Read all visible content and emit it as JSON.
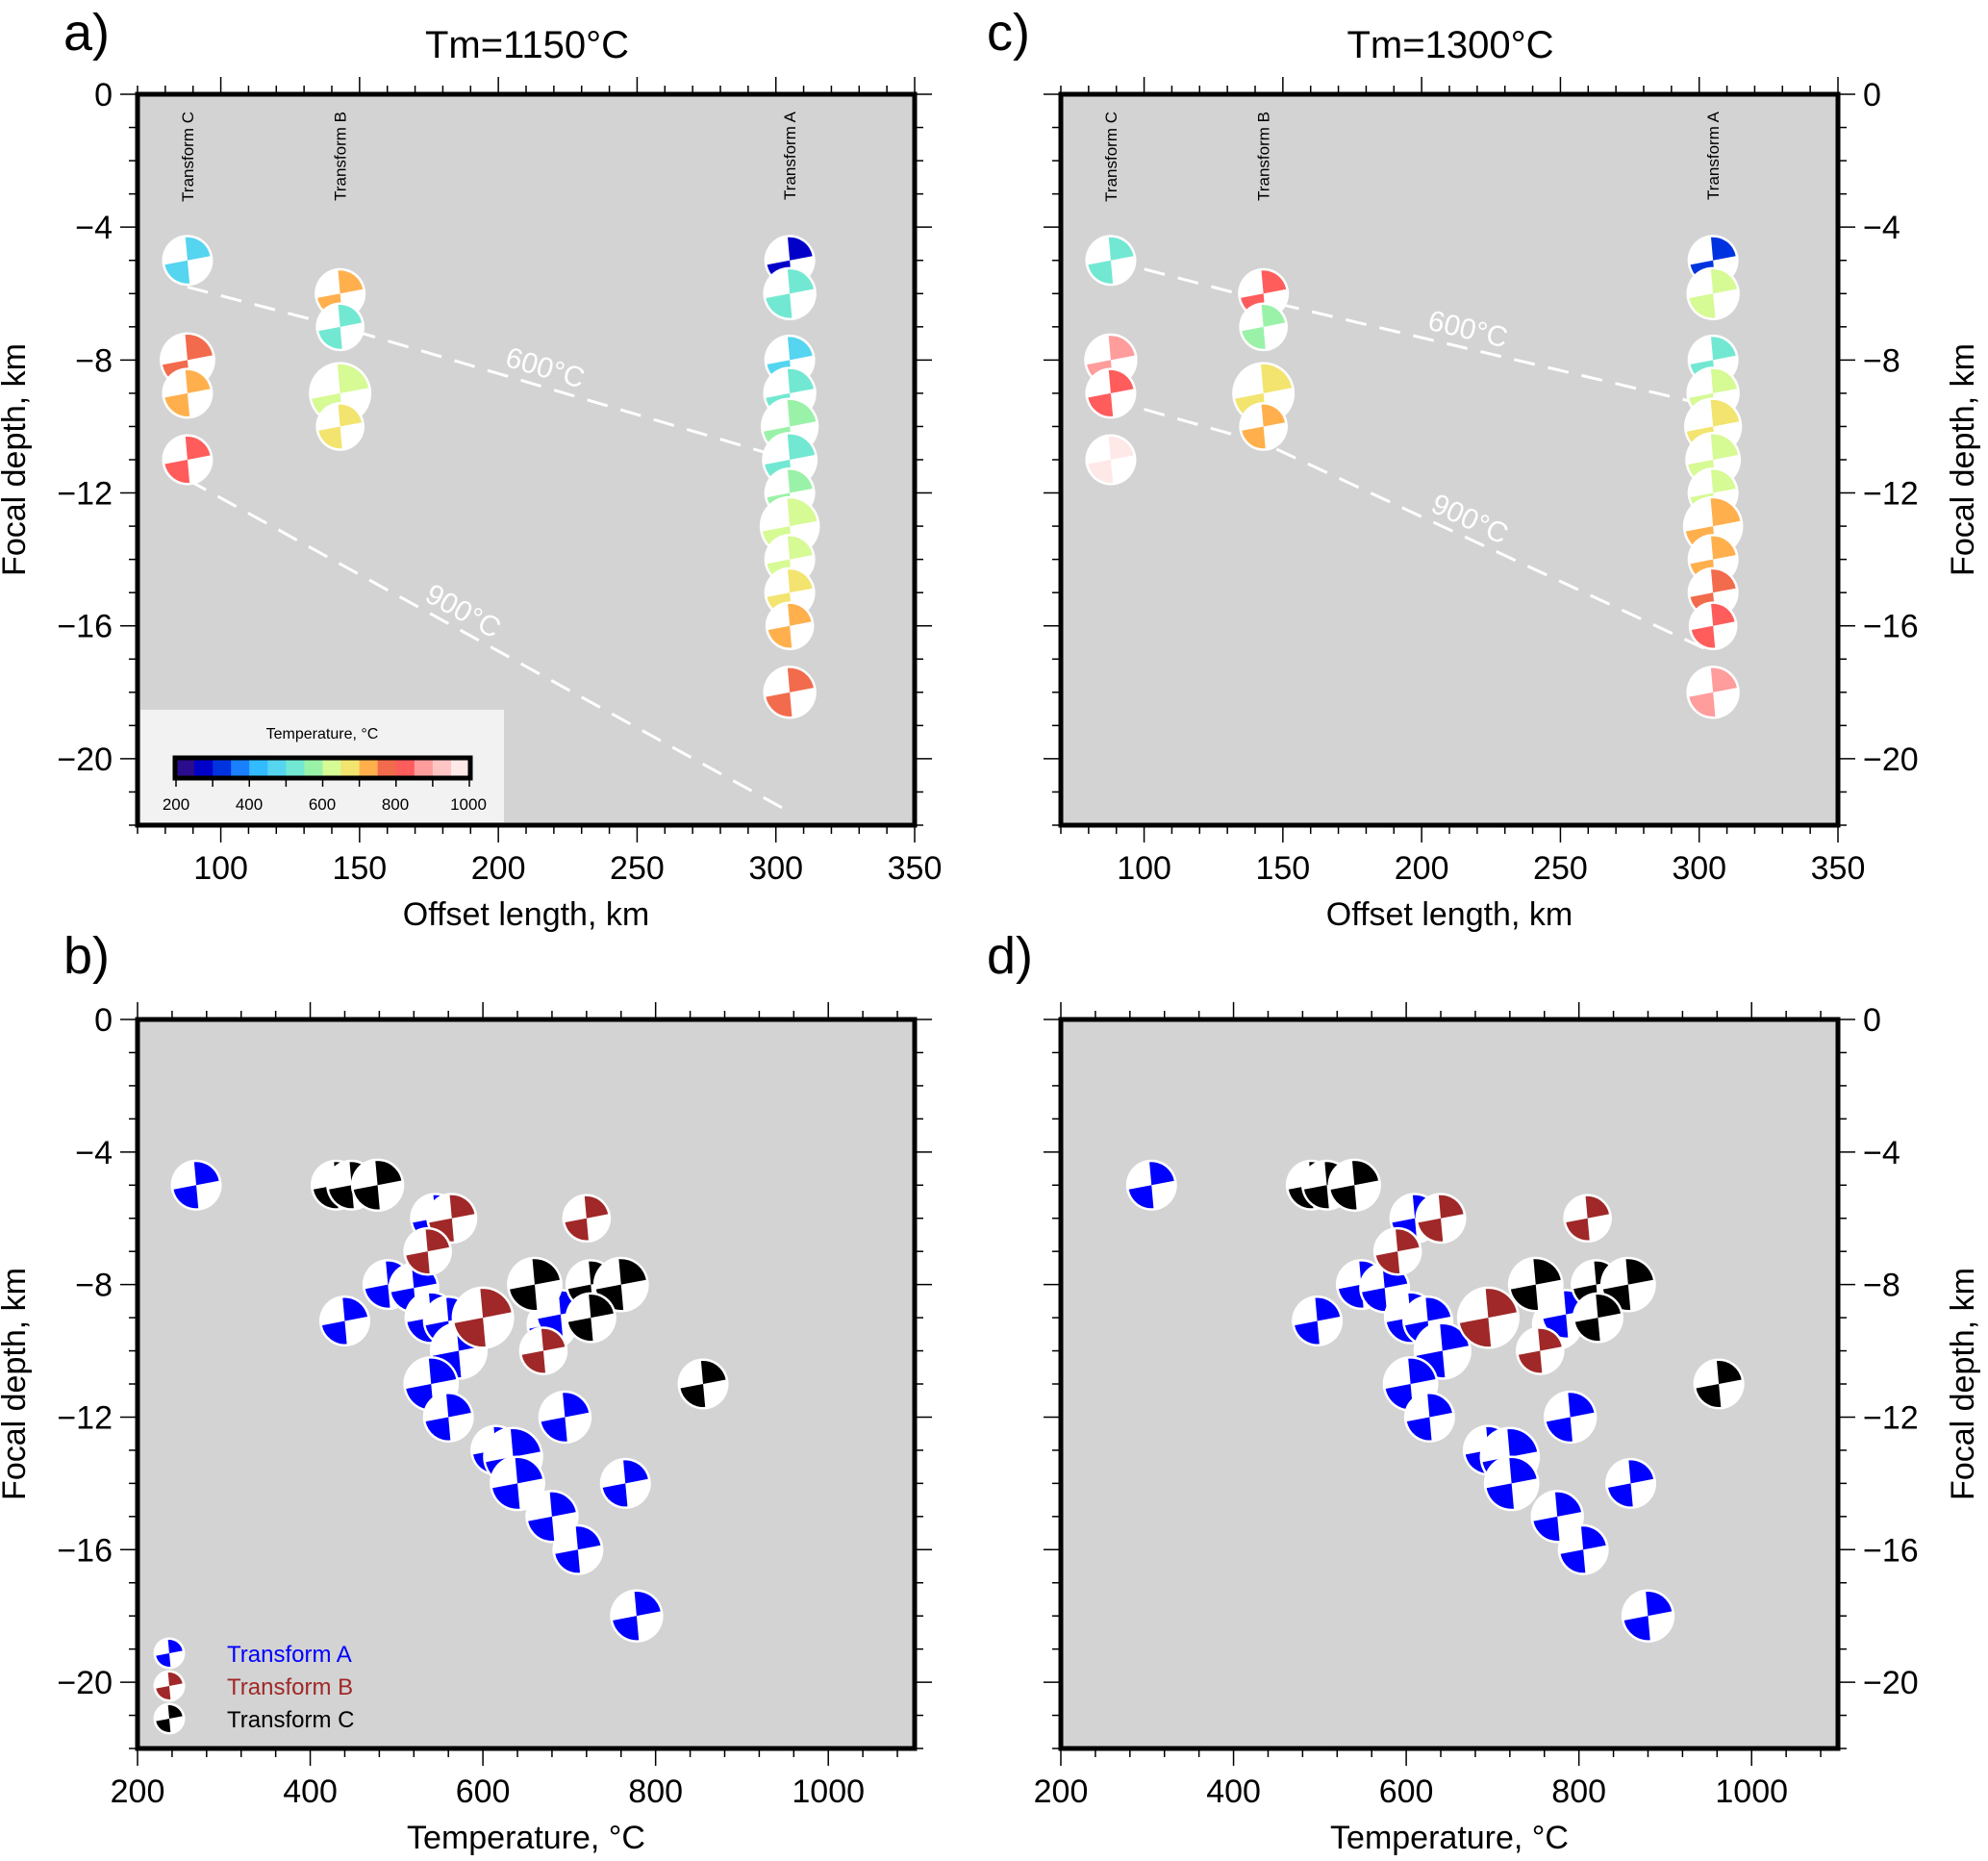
{
  "figure": {
    "panel_labels": [
      "a)",
      "b)",
      "c)",
      "d)"
    ],
    "column_titles": [
      "Tm=1150°C",
      "Tm=1300°C"
    ]
  },
  "colorbar": {
    "title": "Temperature, °C",
    "tick_labels": [
      "200",
      "400",
      "600",
      "800",
      "1000"
    ],
    "range": [
      200,
      1000
    ],
    "step": 50,
    "colors": [
      "#2b0c8f",
      "#0000c8",
      "#0033e0",
      "#1a80ff",
      "#33bbff",
      "#55d5f0",
      "#72e8d2",
      "#9af2a8",
      "#d6fa94",
      "#f2e46e",
      "#ffb04d",
      "#f26b4c",
      "#ff5c5c",
      "#ff9c9c",
      "#ffc4c4",
      "#ffe8e8"
    ]
  },
  "legend": {
    "items": [
      {
        "label": "Transform A",
        "color": "#0000ff"
      },
      {
        "label": "Transform B",
        "color": "#a02828"
      },
      {
        "label": "Transform C",
        "color": "#000000"
      }
    ]
  },
  "chart_data": [
    {
      "id": "a",
      "type": "scatter",
      "title": "Tm=1150°C",
      "xlabel": "Offset length, km",
      "ylabel": "Focal depth, km",
      "xlim": [
        70,
        350
      ],
      "ylim": [
        -22,
        0
      ],
      "xticks": [
        100,
        150,
        200,
        250,
        300,
        350
      ],
      "yticks": [
        0,
        -4,
        -8,
        -12,
        -16,
        -20
      ],
      "marker": "beachball",
      "color_by": "temperature",
      "transform_labels": [
        {
          "label": "Transform C",
          "x": 88
        },
        {
          "label": "Transform B",
          "x": 143
        },
        {
          "label": "Transform A",
          "x": 305
        }
      ],
      "isotherms": [
        {
          "label": "600°C",
          "points": [
            [
              88,
              -5.8
            ],
            [
              143,
              -7.0
            ],
            [
              305,
              -11.0
            ]
          ]
        },
        {
          "label": "900°C",
          "points": [
            [
              88,
              -11.6
            ],
            [
              305,
              -21.6
            ]
          ]
        }
      ],
      "points": [
        {
          "transform": "C",
          "x": 88,
          "depth": -5,
          "temp": 450,
          "size": 1.0
        },
        {
          "transform": "C",
          "x": 88,
          "depth": -8,
          "temp": 775,
          "size": 1.1
        },
        {
          "transform": "C",
          "x": 88,
          "depth": -9,
          "temp": 725,
          "size": 1.0
        },
        {
          "transform": "C",
          "x": 88,
          "depth": -11,
          "temp": 825,
          "size": 1.0
        },
        {
          "transform": "B",
          "x": 143,
          "depth": -6,
          "temp": 725,
          "size": 1.0
        },
        {
          "transform": "B",
          "x": 143,
          "depth": -7,
          "temp": 525,
          "size": 0.95
        },
        {
          "transform": "B",
          "x": 143,
          "depth": -9,
          "temp": 625,
          "size": 1.25
        },
        {
          "transform": "B",
          "x": 143,
          "depth": -10,
          "temp": 675,
          "size": 0.95
        },
        {
          "transform": "A",
          "x": 305,
          "depth": -5,
          "temp": 275,
          "size": 1.0
        },
        {
          "transform": "A",
          "x": 305,
          "depth": -6,
          "temp": 525,
          "size": 1.05
        },
        {
          "transform": "A",
          "x": 305,
          "depth": -8,
          "temp": 450,
          "size": 1.0
        },
        {
          "transform": "A",
          "x": 305,
          "depth": -9,
          "temp": 525,
          "size": 1.05
        },
        {
          "transform": "A",
          "x": 305,
          "depth": -10,
          "temp": 575,
          "size": 1.15
        },
        {
          "transform": "A",
          "x": 305,
          "depth": -11,
          "temp": 525,
          "size": 1.1
        },
        {
          "transform": "A",
          "x": 305,
          "depth": -12,
          "temp": 575,
          "size": 1.0
        },
        {
          "transform": "A",
          "x": 305,
          "depth": -13,
          "temp": 625,
          "size": 1.2
        },
        {
          "transform": "A",
          "x": 305,
          "depth": -14,
          "temp": 625,
          "size": 1.0
        },
        {
          "transform": "A",
          "x": 305,
          "depth": -15,
          "temp": 675,
          "size": 1.0
        },
        {
          "transform": "A",
          "x": 305,
          "depth": -16,
          "temp": 725,
          "size": 0.95
        },
        {
          "transform": "A",
          "x": 305,
          "depth": -18,
          "temp": 775,
          "size": 1.05
        }
      ]
    },
    {
      "id": "b",
      "type": "scatter",
      "xlabel": "Temperature, °C",
      "ylabel": "Focal depth, km",
      "xlim": [
        200,
        1100
      ],
      "ylim": [
        -22,
        0
      ],
      "xticks": [
        200,
        400,
        600,
        800,
        1000
      ],
      "yticks": [
        0,
        -4,
        -8,
        -12,
        -16,
        -20
      ],
      "marker": "beachball",
      "color_by": "transform",
      "points": [
        {
          "transform": "A",
          "temp": 268,
          "depth": -5,
          "size": 1.0
        },
        {
          "transform": "A",
          "temp": 440,
          "depth": -9.1,
          "size": 1.0
        },
        {
          "transform": "A",
          "temp": 490,
          "depth": -8,
          "size": 1.0
        },
        {
          "transform": "A",
          "temp": 520,
          "depth": -8.1,
          "size": 1.0
        },
        {
          "transform": "A",
          "temp": 545,
          "depth": -6,
          "size": 1.0
        },
        {
          "transform": "A",
          "temp": 540,
          "depth": -9,
          "size": 1.05
        },
        {
          "transform": "A",
          "temp": 560,
          "depth": -9.1,
          "size": 1.0
        },
        {
          "transform": "A",
          "temp": 572,
          "depth": -10,
          "size": 1.15
        },
        {
          "transform": "A",
          "temp": 540,
          "depth": -11,
          "size": 1.1
        },
        {
          "transform": "A",
          "temp": 560,
          "depth": -12,
          "size": 1.0
        },
        {
          "transform": "A",
          "temp": 615,
          "depth": -13,
          "size": 1.0
        },
        {
          "transform": "A",
          "temp": 635,
          "depth": -13.2,
          "size": 1.2
        },
        {
          "transform": "A",
          "temp": 640,
          "depth": -14,
          "size": 1.1
        },
        {
          "transform": "A",
          "temp": 695,
          "depth": -12,
          "size": 1.05
        },
        {
          "transform": "A",
          "temp": 680,
          "depth": -15,
          "size": 1.05
        },
        {
          "transform": "A",
          "temp": 710,
          "depth": -16,
          "size": 1.0
        },
        {
          "transform": "A",
          "temp": 765,
          "depth": -14,
          "size": 1.0
        },
        {
          "transform": "A",
          "temp": 680,
          "depth": -9.2,
          "size": 1.0
        },
        {
          "transform": "A",
          "temp": 690,
          "depth": -8.9,
          "size": 1.0
        },
        {
          "transform": "A",
          "temp": 778,
          "depth": -18,
          "size": 1.05
        },
        {
          "transform": "B",
          "temp": 564,
          "depth": -6,
          "size": 1.0
        },
        {
          "transform": "B",
          "temp": 536,
          "depth": -7,
          "size": 0.95
        },
        {
          "transform": "B",
          "temp": 600,
          "depth": -9,
          "size": 1.25
        },
        {
          "transform": "B",
          "temp": 670,
          "depth": -10,
          "size": 0.95
        },
        {
          "transform": "B",
          "temp": 720,
          "depth": -6,
          "size": 0.95
        },
        {
          "transform": "C",
          "temp": 430,
          "depth": -5,
          "size": 1.0
        },
        {
          "transform": "C",
          "temp": 448,
          "depth": -5,
          "size": 1.0
        },
        {
          "transform": "C",
          "temp": 478,
          "depth": -5,
          "size": 1.05
        },
        {
          "transform": "C",
          "temp": 660,
          "depth": -8,
          "size": 1.1
        },
        {
          "transform": "C",
          "temp": 725,
          "depth": -8,
          "size": 1.0
        },
        {
          "transform": "C",
          "temp": 760,
          "depth": -8,
          "size": 1.1
        },
        {
          "transform": "C",
          "temp": 725,
          "depth": -9,
          "size": 1.0
        },
        {
          "transform": "C",
          "temp": 855,
          "depth": -11,
          "size": 1.0
        }
      ]
    },
    {
      "id": "c",
      "type": "scatter",
      "title": "Tm=1300°C",
      "xlabel": "Offset length, km",
      "ylabel": "Focal depth, km",
      "xlim": [
        70,
        350
      ],
      "ylim": [
        -22,
        0
      ],
      "xticks": [
        100,
        150,
        200,
        250,
        300,
        350
      ],
      "yticks": [
        0,
        -4,
        -8,
        -12,
        -16,
        -20
      ],
      "marker": "beachball",
      "color_by": "temperature",
      "transform_labels": [
        {
          "label": "Transform C",
          "x": 88
        },
        {
          "label": "Transform B",
          "x": 143
        },
        {
          "label": "Transform A",
          "x": 305
        }
      ],
      "isotherms": [
        {
          "label": "600°C",
          "points": [
            [
              88,
              -5.0
            ],
            [
              143,
              -6.2
            ],
            [
              305,
              -9.4
            ]
          ]
        },
        {
          "label": "900°C",
          "points": [
            [
              88,
              -9.2
            ],
            [
              143,
              -10.5
            ],
            [
              305,
              -16.8
            ]
          ]
        }
      ],
      "points": [
        {
          "transform": "C",
          "x": 88,
          "depth": -5,
          "temp": 525,
          "size": 1.0
        },
        {
          "transform": "C",
          "x": 88,
          "depth": -8,
          "temp": 875,
          "size": 1.05
        },
        {
          "transform": "C",
          "x": 88,
          "depth": -9,
          "temp": 825,
          "size": 1.0
        },
        {
          "transform": "C",
          "x": 88,
          "depth": -11,
          "temp": 975,
          "size": 1.0
        },
        {
          "transform": "B",
          "x": 143,
          "depth": -6,
          "temp": 825,
          "size": 1.0
        },
        {
          "transform": "B",
          "x": 143,
          "depth": -7,
          "temp": 575,
          "size": 0.95
        },
        {
          "transform": "B",
          "x": 143,
          "depth": -9,
          "temp": 675,
          "size": 1.25
        },
        {
          "transform": "B",
          "x": 143,
          "depth": -10,
          "temp": 725,
          "size": 0.95
        },
        {
          "transform": "A",
          "x": 305,
          "depth": -5,
          "temp": 325,
          "size": 1.0
        },
        {
          "transform": "A",
          "x": 305,
          "depth": -6,
          "temp": 625,
          "size": 1.05
        },
        {
          "transform": "A",
          "x": 305,
          "depth": -8,
          "temp": 525,
          "size": 1.0
        },
        {
          "transform": "A",
          "x": 305,
          "depth": -9,
          "temp": 625,
          "size": 1.05
        },
        {
          "transform": "A",
          "x": 305,
          "depth": -10,
          "temp": 675,
          "size": 1.15
        },
        {
          "transform": "A",
          "x": 305,
          "depth": -11,
          "temp": 625,
          "size": 1.1
        },
        {
          "transform": "A",
          "x": 305,
          "depth": -12,
          "temp": 625,
          "size": 1.0
        },
        {
          "transform": "A",
          "x": 305,
          "depth": -13,
          "temp": 725,
          "size": 1.2
        },
        {
          "transform": "A",
          "x": 305,
          "depth": -14,
          "temp": 725,
          "size": 1.0
        },
        {
          "transform": "A",
          "x": 305,
          "depth": -15,
          "temp": 775,
          "size": 1.0
        },
        {
          "transform": "A",
          "x": 305,
          "depth": -16,
          "temp": 825,
          "size": 0.95
        },
        {
          "transform": "A",
          "x": 305,
          "depth": -18,
          "temp": 875,
          "size": 1.05
        }
      ]
    },
    {
      "id": "d",
      "type": "scatter",
      "xlabel": "Temperature, °C",
      "ylabel": "Focal depth, km",
      "xlim": [
        200,
        1100
      ],
      "ylim": [
        -22,
        0
      ],
      "xticks": [
        200,
        400,
        600,
        800,
        1000
      ],
      "yticks": [
        0,
        -4,
        -8,
        -12,
        -16,
        -20
      ],
      "marker": "beachball",
      "color_by": "transform",
      "points": [
        {
          "transform": "A",
          "temp": 305,
          "depth": -5,
          "size": 1.0
        },
        {
          "transform": "A",
          "temp": 497,
          "depth": -9.1,
          "size": 1.0
        },
        {
          "transform": "A",
          "temp": 548,
          "depth": -8,
          "size": 1.0
        },
        {
          "transform": "A",
          "temp": 575,
          "depth": -8.1,
          "size": 1.0
        },
        {
          "transform": "A",
          "temp": 610,
          "depth": -6,
          "size": 1.0
        },
        {
          "transform": "A",
          "temp": 605,
          "depth": -9,
          "size": 1.05
        },
        {
          "transform": "A",
          "temp": 625,
          "depth": -9.1,
          "size": 1.0
        },
        {
          "transform": "A",
          "temp": 642,
          "depth": -10,
          "size": 1.15
        },
        {
          "transform": "A",
          "temp": 605,
          "depth": -11,
          "size": 1.1
        },
        {
          "transform": "A",
          "temp": 627,
          "depth": -12,
          "size": 1.0
        },
        {
          "transform": "A",
          "temp": 695,
          "depth": -13,
          "size": 1.0
        },
        {
          "transform": "A",
          "temp": 720,
          "depth": -13.2,
          "size": 1.2
        },
        {
          "transform": "A",
          "temp": 722,
          "depth": -14,
          "size": 1.1
        },
        {
          "transform": "A",
          "temp": 790,
          "depth": -12,
          "size": 1.05
        },
        {
          "transform": "A",
          "temp": 775,
          "depth": -15,
          "size": 1.05
        },
        {
          "transform": "A",
          "temp": 805,
          "depth": -16,
          "size": 1.0
        },
        {
          "transform": "A",
          "temp": 860,
          "depth": -14,
          "size": 1.0
        },
        {
          "transform": "A",
          "temp": 775,
          "depth": -9.2,
          "size": 1.0
        },
        {
          "transform": "A",
          "temp": 785,
          "depth": -8.9,
          "size": 1.0
        },
        {
          "transform": "A",
          "temp": 880,
          "depth": -18,
          "size": 1.05
        },
        {
          "transform": "B",
          "temp": 640,
          "depth": -6,
          "size": 1.0
        },
        {
          "transform": "B",
          "temp": 590,
          "depth": -7,
          "size": 0.95
        },
        {
          "transform": "B",
          "temp": 695,
          "depth": -9,
          "size": 1.25
        },
        {
          "transform": "B",
          "temp": 755,
          "depth": -10,
          "size": 0.95
        },
        {
          "transform": "B",
          "temp": 810,
          "depth": -6,
          "size": 0.95
        },
        {
          "transform": "C",
          "temp": 490,
          "depth": -5,
          "size": 1.0
        },
        {
          "transform": "C",
          "temp": 508,
          "depth": -5,
          "size": 1.0
        },
        {
          "transform": "C",
          "temp": 540,
          "depth": -5,
          "size": 1.05
        },
        {
          "transform": "C",
          "temp": 750,
          "depth": -8,
          "size": 1.1
        },
        {
          "transform": "C",
          "temp": 820,
          "depth": -8,
          "size": 1.0
        },
        {
          "transform": "C",
          "temp": 857,
          "depth": -8,
          "size": 1.1
        },
        {
          "transform": "C",
          "temp": 822,
          "depth": -9,
          "size": 1.0
        },
        {
          "transform": "C",
          "temp": 962,
          "depth": -11,
          "size": 1.0
        }
      ]
    }
  ]
}
